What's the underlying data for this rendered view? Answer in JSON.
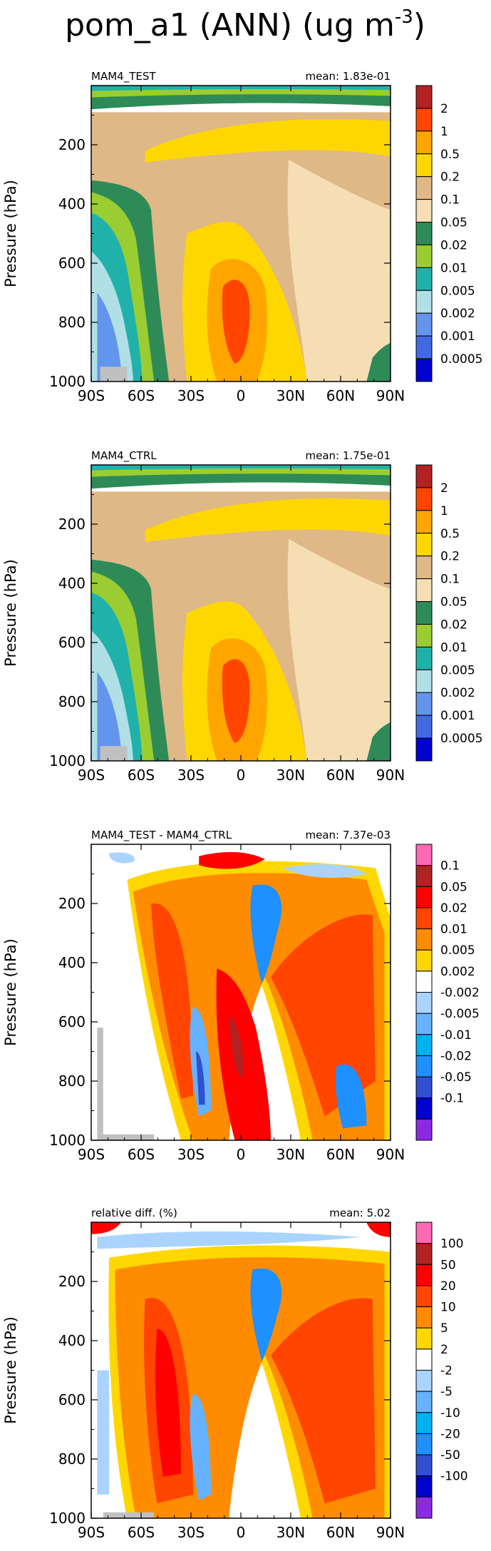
{
  "title": "pom_a1 (ANN) (ug m",
  "title_exp": "-3",
  "title_close": ")",
  "chart_data": [
    {
      "type": "heatmap",
      "panel_title": "MAM4_TEST",
      "mean_label": "mean: 1.83e-01",
      "ylabel": "Pressure (hPa)",
      "x_ticks": [
        "90S",
        "60S",
        "30S",
        "0",
        "30N",
        "60N",
        "90N"
      ],
      "y_ticks": [
        "200",
        "400",
        "600",
        "800",
        "1000"
      ],
      "ylim": [
        1000,
        0
      ],
      "colorbar_levels": [
        "2",
        "1",
        "0.5",
        "0.2",
        "0.1",
        "0.05",
        "0.02",
        "0.01",
        "0.005",
        "0.002",
        "0.001",
        "0.0005"
      ],
      "colorbar_colors": [
        "#b22222",
        "#ff4500",
        "#ffa500",
        "#ffd700",
        "#deb887",
        "#f5deb3",
        "#2e8b57",
        "#9acd32",
        "#20b2aa",
        "#b0e0e6",
        "#6495ed",
        "#4169e1",
        "#0000cd"
      ]
    },
    {
      "type": "heatmap",
      "panel_title": "MAM4_CTRL",
      "mean_label": "mean: 1.75e-01",
      "ylabel": "Pressure (hPa)",
      "x_ticks": [
        "90S",
        "60S",
        "30S",
        "0",
        "30N",
        "60N",
        "90N"
      ],
      "y_ticks": [
        "200",
        "400",
        "600",
        "800",
        "1000"
      ],
      "ylim": [
        1000,
        0
      ],
      "colorbar_levels": [
        "2",
        "1",
        "0.5",
        "0.2",
        "0.1",
        "0.05",
        "0.02",
        "0.01",
        "0.005",
        "0.002",
        "0.001",
        "0.0005"
      ],
      "colorbar_colors": [
        "#b22222",
        "#ff4500",
        "#ffa500",
        "#ffd700",
        "#deb887",
        "#f5deb3",
        "#2e8b57",
        "#9acd32",
        "#20b2aa",
        "#b0e0e6",
        "#6495ed",
        "#4169e1",
        "#0000cd"
      ]
    },
    {
      "type": "heatmap",
      "panel_title": "MAM4_TEST - MAM4_CTRL",
      "mean_label": "mean: 7.37e-03",
      "ylabel": "Pressure (hPa)",
      "x_ticks": [
        "90S",
        "60S",
        "30S",
        "0",
        "30N",
        "60N",
        "90N"
      ],
      "y_ticks": [
        "200",
        "400",
        "600",
        "800",
        "1000"
      ],
      "ylim": [
        1000,
        0
      ],
      "colorbar_levels": [
        "0.1",
        "0.05",
        "0.02",
        "0.01",
        "0.005",
        "0.002",
        "-0.002",
        "-0.005",
        "-0.01",
        "-0.02",
        "-0.05",
        "-0.1"
      ],
      "colorbar_colors": [
        "#ff69b4",
        "#b22222",
        "#ff0000",
        "#ff4500",
        "#ff8c00",
        "#ffd700",
        "#ffffff",
        "#aad4ff",
        "#66b2ff",
        "#00b0f0",
        "#1e90ff",
        "#3050d0",
        "#0000cd",
        "#8a2be2"
      ]
    },
    {
      "type": "heatmap",
      "panel_title": "relative diff. (%)",
      "mean_label": "mean:  5.02",
      "ylabel": "Pressure (hPa)",
      "x_ticks": [
        "90S",
        "60S",
        "30S",
        "0",
        "30N",
        "60N",
        "90N"
      ],
      "y_ticks": [
        "200",
        "400",
        "600",
        "800",
        "1000"
      ],
      "ylim": [
        1000,
        0
      ],
      "colorbar_levels": [
        "100",
        "50",
        "20",
        "10",
        "5",
        "2",
        "-2",
        "-5",
        "-10",
        "-20",
        "-50",
        "-100"
      ],
      "colorbar_colors": [
        "#ff69b4",
        "#b22222",
        "#ff0000",
        "#ff4500",
        "#ff8c00",
        "#ffd700",
        "#ffffff",
        "#aad4ff",
        "#66b2ff",
        "#00b0f0",
        "#1e90ff",
        "#3050d0",
        "#0000cd",
        "#8a2be2"
      ]
    }
  ]
}
